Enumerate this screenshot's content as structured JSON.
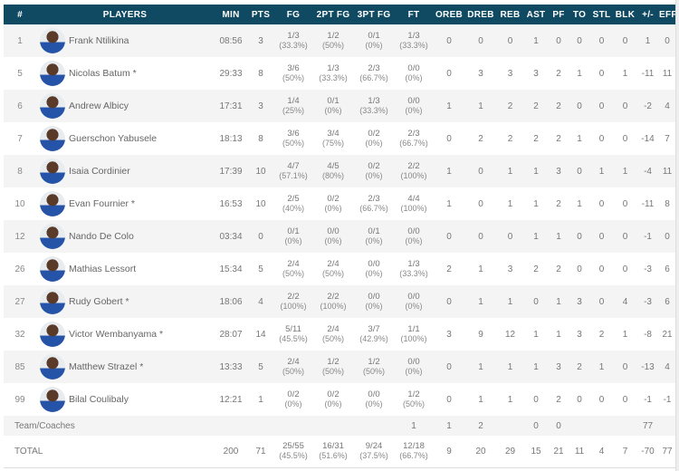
{
  "headers": [
    "#",
    "PLAYERS",
    "MIN",
    "PTS",
    "FG",
    "2PT FG",
    "3PT FG",
    "FT",
    "OREB",
    "DREB",
    "REB",
    "AST",
    "PF",
    "TO",
    "STL",
    "BLK",
    "+/-",
    "EFF"
  ],
  "colors": {
    "header_bg": "#0f4a62",
    "row_alt": "#f4f4f4"
  },
  "players": [
    {
      "num": "1",
      "name": "Frank Ntilikina",
      "min": "08:56",
      "pts": "3",
      "fg": [
        "1/3",
        "(33.3%)"
      ],
      "fg2": [
        "1/2",
        "(50%)"
      ],
      "fg3": [
        "0/1",
        "(0%)"
      ],
      "ft": [
        "1/3",
        "(33.3%)"
      ],
      "stats": [
        "0",
        "0",
        "0",
        "1",
        "0",
        "0",
        "0",
        "0",
        "1",
        "0"
      ]
    },
    {
      "num": "5",
      "name": "Nicolas Batum *",
      "min": "29:33",
      "pts": "8",
      "fg": [
        "3/6",
        "(50%)"
      ],
      "fg2": [
        "1/3",
        "(33.3%)"
      ],
      "fg3": [
        "2/3",
        "(66.7%)"
      ],
      "ft": [
        "0/0",
        "(0%)"
      ],
      "stats": [
        "0",
        "3",
        "3",
        "3",
        "2",
        "1",
        "0",
        "1",
        "-11",
        "11"
      ]
    },
    {
      "num": "6",
      "name": "Andrew Albicy",
      "min": "17:31",
      "pts": "3",
      "fg": [
        "1/4",
        "(25%)"
      ],
      "fg2": [
        "0/1",
        "(0%)"
      ],
      "fg3": [
        "1/3",
        "(33.3%)"
      ],
      "ft": [
        "0/0",
        "(0%)"
      ],
      "stats": [
        "1",
        "1",
        "2",
        "2",
        "2",
        "0",
        "0",
        "0",
        "-2",
        "4"
      ]
    },
    {
      "num": "7",
      "name": "Guerschon Yabusele",
      "min": "18:13",
      "pts": "8",
      "fg": [
        "3/6",
        "(50%)"
      ],
      "fg2": [
        "3/4",
        "(75%)"
      ],
      "fg3": [
        "0/2",
        "(0%)"
      ],
      "ft": [
        "2/3",
        "(66.7%)"
      ],
      "stats": [
        "0",
        "2",
        "2",
        "2",
        "2",
        "1",
        "0",
        "0",
        "-14",
        "7"
      ]
    },
    {
      "num": "8",
      "name": "Isaia Cordinier",
      "min": "17:39",
      "pts": "10",
      "fg": [
        "4/7",
        "(57.1%)"
      ],
      "fg2": [
        "4/5",
        "(80%)"
      ],
      "fg3": [
        "0/2",
        "(0%)"
      ],
      "ft": [
        "2/2",
        "(100%)"
      ],
      "stats": [
        "1",
        "0",
        "1",
        "1",
        "3",
        "0",
        "1",
        "1",
        "-4",
        "11"
      ]
    },
    {
      "num": "10",
      "name": "Evan Fournier *",
      "min": "16:53",
      "pts": "10",
      "fg": [
        "2/5",
        "(40%)"
      ],
      "fg2": [
        "0/2",
        "(0%)"
      ],
      "fg3": [
        "2/3",
        "(66.7%)"
      ],
      "ft": [
        "4/4",
        "(100%)"
      ],
      "stats": [
        "1",
        "0",
        "1",
        "1",
        "2",
        "1",
        "0",
        "0",
        "-11",
        "8"
      ]
    },
    {
      "num": "12",
      "name": "Nando De Colo",
      "min": "03:34",
      "pts": "0",
      "fg": [
        "0/1",
        "(0%)"
      ],
      "fg2": [
        "0/0",
        "(0%)"
      ],
      "fg3": [
        "0/1",
        "(0%)"
      ],
      "ft": [
        "0/0",
        "(0%)"
      ],
      "stats": [
        "0",
        "0",
        "0",
        "1",
        "1",
        "0",
        "0",
        "0",
        "-1",
        "0"
      ]
    },
    {
      "num": "26",
      "name": "Mathias Lessort",
      "min": "15:34",
      "pts": "5",
      "fg": [
        "2/4",
        "(50%)"
      ],
      "fg2": [
        "2/4",
        "(50%)"
      ],
      "fg3": [
        "0/0",
        "(0%)"
      ],
      "ft": [
        "1/3",
        "(33.3%)"
      ],
      "stats": [
        "2",
        "1",
        "3",
        "2",
        "2",
        "0",
        "0",
        "0",
        "-3",
        "6"
      ]
    },
    {
      "num": "27",
      "name": "Rudy Gobert *",
      "min": "18:06",
      "pts": "4",
      "fg": [
        "2/2",
        "(100%)"
      ],
      "fg2": [
        "2/2",
        "(100%)"
      ],
      "fg3": [
        "0/0",
        "(0%)"
      ],
      "ft": [
        "0/0",
        "(0%)"
      ],
      "stats": [
        "0",
        "1",
        "1",
        "0",
        "1",
        "3",
        "0",
        "4",
        "-3",
        "6"
      ]
    },
    {
      "num": "32",
      "name": "Victor Wembanyama *",
      "min": "28:07",
      "pts": "14",
      "fg": [
        "5/11",
        "(45.5%)"
      ],
      "fg2": [
        "2/4",
        "(50%)"
      ],
      "fg3": [
        "3/7",
        "(42.9%)"
      ],
      "ft": [
        "1/1",
        "(100%)"
      ],
      "stats": [
        "3",
        "9",
        "12",
        "1",
        "1",
        "3",
        "2",
        "1",
        "-8",
        "21"
      ]
    },
    {
      "num": "85",
      "name": "Matthew Strazel *",
      "min": "13:33",
      "pts": "5",
      "fg": [
        "2/4",
        "(50%)"
      ],
      "fg2": [
        "1/2",
        "(50%)"
      ],
      "fg3": [
        "1/2",
        "(50%)"
      ],
      "ft": [
        "0/0",
        "(0%)"
      ],
      "stats": [
        "0",
        "1",
        "1",
        "1",
        "3",
        "2",
        "1",
        "0",
        "-13",
        "4"
      ]
    },
    {
      "num": "99",
      "name": "Bilal Coulibaly",
      "min": "12:21",
      "pts": "1",
      "fg": [
        "0/2",
        "(0%)"
      ],
      "fg2": [
        "0/2",
        "(0%)"
      ],
      "fg3": [
        "0/0",
        "(0%)"
      ],
      "ft": [
        "1/2",
        "(50%)"
      ],
      "stats": [
        "0",
        "1",
        "1",
        "0",
        "2",
        "0",
        "0",
        "0",
        "-1",
        "-1"
      ]
    }
  ],
  "team": {
    "label": "Team/Coaches",
    "stats": [
      "1",
      "1",
      "2",
      "",
      "0",
      "0",
      "",
      "",
      "",
      "77"
    ]
  },
  "total": {
    "label": "TOTAL",
    "min": "200",
    "pts": "71",
    "fg": [
      "25/55",
      "(45.5%)"
    ],
    "fg2": [
      "16/31",
      "(51.6%)"
    ],
    "fg3": [
      "9/24",
      "(37.5%)"
    ],
    "ft": [
      "12/18",
      "(66.7%)"
    ],
    "stats": [
      "9",
      "20",
      "29",
      "15",
      "21",
      "11",
      "4",
      "7",
      "-70",
      "77"
    ]
  }
}
